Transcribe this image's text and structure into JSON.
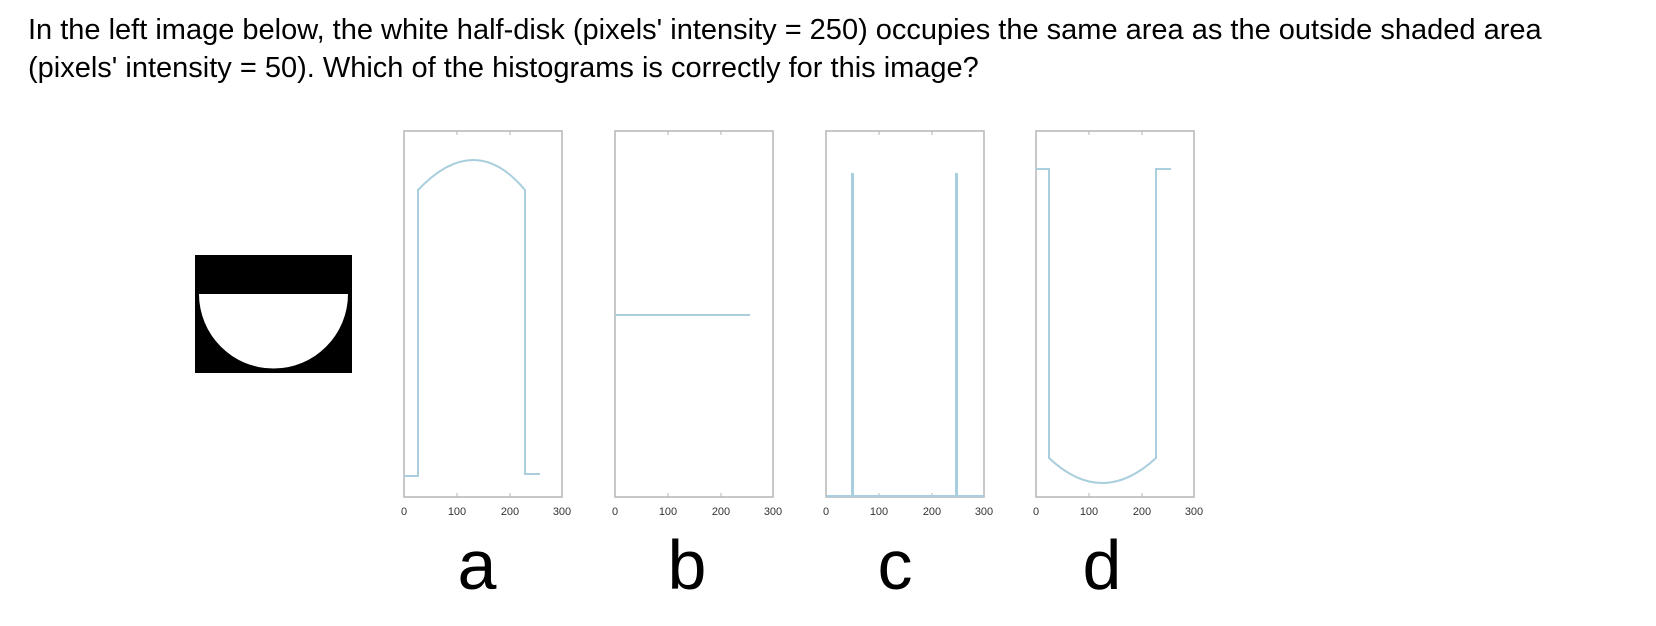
{
  "question": {
    "text": "In the left image below, the white half-disk (pixels' intensity = 250) occupies the same area as the outside shaded area (pixels' intensity = 50). Which of the histograms is correctly for this image?"
  },
  "colors": {
    "curve": "#a9cedd",
    "frame": "#b5b5b5",
    "shaded": "#000000",
    "disk": "#ffffff"
  },
  "histograms": [
    {
      "label": "a",
      "shape": "arch",
      "ticks": [
        "0",
        "100",
        "200",
        "300"
      ]
    },
    {
      "label": "b",
      "shape": "flat",
      "ticks": [
        "0",
        "100",
        "200",
        "300"
      ]
    },
    {
      "label": "c",
      "shape": "two-spikes",
      "ticks": [
        "0",
        "100",
        "200",
        "300"
      ]
    },
    {
      "label": "d",
      "shape": "bowl",
      "ticks": [
        "0",
        "100",
        "200",
        "300"
      ]
    }
  ]
}
